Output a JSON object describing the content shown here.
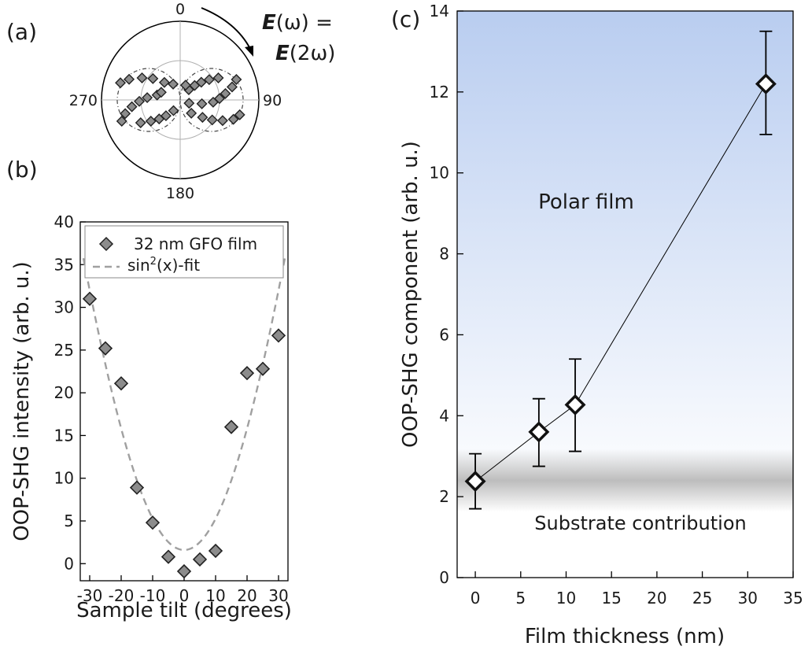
{
  "figure": {
    "panel_a_label": "(a)",
    "panel_b_label": "(b)",
    "panel_c_label": "(c)"
  },
  "chart_data": [
    {
      "panel": "(a)",
      "type": "scatter",
      "coordinate_system": "polar",
      "angle_ticks": [
        "0",
        "90",
        "180",
        "270"
      ],
      "annotation_line1_sym": "E",
      "annotation_line1_rest": "(ω) =",
      "annotation_line2_sym": "E",
      "annotation_line2_rest": "(2ω)",
      "marker": "diamond",
      "marker_color": "#8c8c8c",
      "fit_line": "dashdot",
      "series": [
        {
          "points": [
            {
              "angle_deg": 70,
              "r": 0.76
            },
            {
              "angle_deg": 76,
              "r": 0.68
            },
            {
              "angle_deg": 82,
              "r": 0.58
            },
            {
              "angle_deg": 88,
              "r": 0.5
            },
            {
              "angle_deg": 94,
              "r": 0.42
            },
            {
              "angle_deg": 100,
              "r": 0.28
            },
            {
              "angle_deg": 110,
              "r": 0.12
            },
            {
              "angle_deg": 60,
              "r": 0.56
            },
            {
              "angle_deg": 55,
              "r": 0.45
            },
            {
              "angle_deg": 50,
              "r": 0.35
            },
            {
              "angle_deg": 45,
              "r": 0.26
            },
            {
              "angle_deg": 40,
              "r": 0.17
            },
            {
              "angle_deg": 104,
              "r": 0.78
            },
            {
              "angle_deg": 110,
              "r": 0.72
            },
            {
              "angle_deg": 116,
              "r": 0.6
            },
            {
              "angle_deg": 122,
              "r": 0.48
            },
            {
              "angle_deg": 128,
              "r": 0.36
            },
            {
              "angle_deg": 140,
              "r": 0.22
            },
            {
              "angle_deg": 250,
              "r": 0.79
            },
            {
              "angle_deg": 256,
              "r": 0.72
            },
            {
              "angle_deg": 262,
              "r": 0.62
            },
            {
              "angle_deg": 268,
              "r": 0.52
            },
            {
              "angle_deg": 274,
              "r": 0.42
            },
            {
              "angle_deg": 282,
              "r": 0.3
            },
            {
              "angle_deg": 292,
              "r": 0.26
            },
            {
              "angle_deg": 240,
              "r": 0.58
            },
            {
              "angle_deg": 234,
              "r": 0.46
            },
            {
              "angle_deg": 228,
              "r": 0.36
            },
            {
              "angle_deg": 222,
              "r": 0.27
            },
            {
              "angle_deg": 212,
              "r": 0.16
            },
            {
              "angle_deg": 286,
              "r": 0.79
            },
            {
              "angle_deg": 292,
              "r": 0.7
            },
            {
              "angle_deg": 300,
              "r": 0.56
            },
            {
              "angle_deg": 308,
              "r": 0.44
            },
            {
              "angle_deg": 318,
              "r": 0.3
            },
            {
              "angle_deg": 336,
              "r": 0.22
            },
            {
              "angle_deg": 20,
              "r": 0.2
            }
          ]
        }
      ]
    },
    {
      "panel": "(b)",
      "type": "scatter",
      "xlabel": "Sample tilt (degrees)",
      "ylabel": "OOP-SHG intensity (arb. u.)",
      "xlim": [
        -33,
        33
      ],
      "ylim": [
        -2,
        40
      ],
      "xticks": [
        -30,
        -20,
        -10,
        0,
        10,
        20,
        30
      ],
      "xtick_labels": [
        "-30",
        "-20",
        "-10",
        "0",
        "10",
        "20",
        "30"
      ],
      "yticks": [
        0,
        5,
        10,
        15,
        20,
        25,
        30,
        35,
        40
      ],
      "ytick_labels": [
        "0",
        "5",
        "10",
        "15",
        "20",
        "25",
        "30",
        "35",
        "40"
      ],
      "legend_position": "top-right",
      "legend_marker_label": "32 nm GFO film",
      "legend_fit_base": "sin",
      "legend_fit_sup": "2",
      "legend_fit_rest": "(x)-fit",
      "marker_color": "#8c8c8c",
      "fit_color": "#a0a0a0",
      "series": [
        {
          "x": [
            -30,
            -25,
            -20,
            -15,
            -10,
            -5,
            0,
            5,
            10,
            15,
            20,
            25,
            30
          ],
          "y": [
            31,
            25.2,
            21.1,
            8.9,
            4.8,
            0.8,
            -0.9,
            0.5,
            1.5,
            16,
            22.3,
            22.8,
            26.7
          ]
        }
      ],
      "fit": {
        "x_range": [
          -32,
          32
        ],
        "formula": "1.6 + 30.4*sin^2(x*pi/180)/sin^2(30*pi/180)"
      }
    },
    {
      "panel": "(c)",
      "type": "line",
      "xlabel": "Film thickness (nm)",
      "ylabel": "OOP-SHG component (arb. u.)",
      "xlim": [
        -2,
        35
      ],
      "ylim": [
        0,
        14
      ],
      "xticks": [
        0,
        5,
        10,
        15,
        20,
        25,
        30,
        35
      ],
      "xtick_labels": [
        "0",
        "5",
        "10",
        "15",
        "20",
        "25",
        "30",
        "35"
      ],
      "yticks": [
        0,
        2,
        4,
        6,
        8,
        10,
        12,
        14
      ],
      "ytick_labels": [
        "0",
        "2",
        "4",
        "6",
        "8",
        "10",
        "12",
        "14"
      ],
      "region_polar_label": "Polar film",
      "region_substrate_label": "Substrate contribution",
      "region_polar_color": "#b9cdf0",
      "region_substrate_color": "#bdbdbd",
      "substrate_band_center": 2.4,
      "series": [
        {
          "x": [
            0,
            7,
            11,
            32
          ],
          "y": [
            2.38,
            3.6,
            4.27,
            12.2
          ],
          "yerr_low": [
            0.68,
            0.85,
            1.15,
            1.25
          ],
          "yerr_high": [
            0.68,
            0.82,
            1.13,
            1.3
          ]
        }
      ]
    }
  ]
}
